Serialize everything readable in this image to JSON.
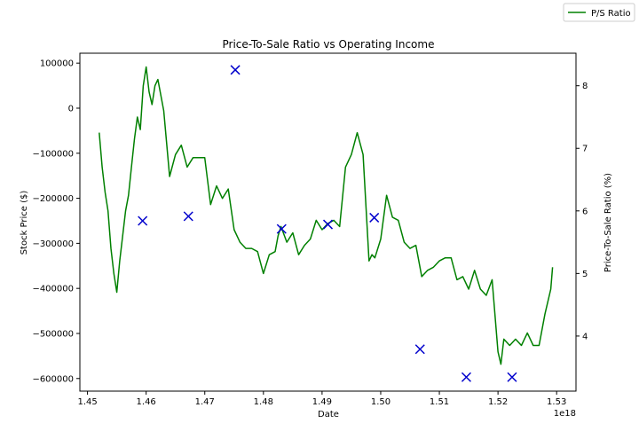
{
  "chart_data": {
    "type": "line",
    "title": "Price-To-Sale Ratio vs Operating Income",
    "xlabel": "Date",
    "x_offset_label": "1e18",
    "ylabel_left": "Stock Price ($)",
    "ylabel_right": "Price-To-Sale Ratio (%)",
    "xlim": [
      1.4487,
      1.5333
    ],
    "ylim_left": [
      -628000,
      122000
    ],
    "ylim_right": [
      3.12,
      8.52
    ],
    "x_ticks": [
      1.45,
      1.46,
      1.47,
      1.48,
      1.49,
      1.5,
      1.51,
      1.52,
      1.53
    ],
    "x_tick_labels": [
      "1.45",
      "1.46",
      "1.47",
      "1.48",
      "1.49",
      "1.50",
      "1.51",
      "1.52",
      "1.53"
    ],
    "y_left_ticks": [
      100000,
      0,
      -100000,
      -200000,
      -300000,
      -400000,
      -500000,
      -600000
    ],
    "y_left_tick_labels": [
      "100000",
      "0",
      "−100000",
      "−200000",
      "−300000",
      "−400000",
      "−500000",
      "−600000"
    ],
    "y_right_ticks": [
      4,
      5,
      6,
      7,
      8
    ],
    "y_right_tick_labels": [
      "4",
      "5",
      "6",
      "7",
      "8"
    ],
    "legend": {
      "position": "top-right",
      "entries": [
        "P/S Ratio"
      ]
    },
    "grid": false,
    "colors": {
      "line": "#008000",
      "markers": "#0000cc"
    },
    "series": [
      {
        "name": "P/S Ratio",
        "type": "line",
        "axis": "right",
        "color": "#008000",
        "x": [
          1.452,
          1.4525,
          1.453,
          1.4535,
          1.454,
          1.4545,
          1.455,
          1.4555,
          1.456,
          1.4565,
          1.457,
          1.4575,
          1.458,
          1.4585,
          1.459,
          1.4595,
          1.46,
          1.4605,
          1.461,
          1.4615,
          1.462,
          1.463,
          1.464,
          1.465,
          1.466,
          1.467,
          1.468,
          1.469,
          1.47,
          1.471,
          1.472,
          1.473,
          1.474,
          1.475,
          1.476,
          1.477,
          1.478,
          1.479,
          1.48,
          1.481,
          1.482,
          1.4825,
          1.483,
          1.484,
          1.485,
          1.486,
          1.487,
          1.488,
          1.489,
          1.49,
          1.491,
          1.492,
          1.493,
          1.494,
          1.495,
          1.496,
          1.497,
          1.498,
          1.4985,
          1.499,
          1.5,
          1.501,
          1.502,
          1.503,
          1.504,
          1.505,
          1.506,
          1.507,
          1.508,
          1.509,
          1.51,
          1.511,
          1.512,
          1.513,
          1.514,
          1.515,
          1.516,
          1.517,
          1.518,
          1.519,
          1.52,
          1.5205,
          1.521,
          1.522,
          1.523,
          1.524,
          1.525,
          1.526,
          1.527,
          1.528,
          1.529,
          1.5293
        ],
        "values": [
          7.25,
          6.7,
          6.3,
          6.0,
          5.4,
          5.0,
          4.7,
          5.2,
          5.6,
          6.0,
          6.25,
          6.7,
          7.15,
          7.5,
          7.3,
          8.0,
          8.3,
          7.9,
          7.7,
          8.0,
          8.1,
          7.6,
          6.55,
          6.9,
          7.05,
          6.7,
          6.85,
          6.85,
          6.85,
          6.1,
          6.4,
          6.2,
          6.35,
          5.7,
          5.5,
          5.4,
          5.4,
          5.35,
          5.0,
          5.3,
          5.35,
          5.6,
          5.75,
          5.5,
          5.65,
          5.3,
          5.45,
          5.55,
          5.85,
          5.7,
          5.8,
          5.85,
          5.75,
          6.7,
          6.9,
          7.25,
          6.9,
          5.2,
          5.3,
          5.25,
          5.55,
          6.25,
          5.9,
          5.85,
          5.5,
          5.4,
          5.45,
          4.95,
          5.05,
          5.1,
          5.2,
          5.25,
          5.25,
          4.9,
          4.95,
          4.75,
          5.05,
          4.75,
          4.65,
          4.9,
          3.75,
          3.55,
          3.95,
          3.85,
          3.95,
          3.85,
          4.05,
          3.85,
          3.85,
          4.35,
          4.75,
          5.1
        ]
      },
      {
        "name": "",
        "type": "scatter",
        "marker": "x",
        "axis": "left",
        "color": "#0000cc",
        "x": [
          1.4594,
          1.4672,
          1.4752,
          1.4831,
          1.491,
          1.4989,
          1.5067,
          1.5146,
          1.5224
        ],
        "values": [
          -250000,
          -240000,
          85000,
          -268000,
          -258000,
          -243000,
          -535000,
          -597000,
          -597000
        ]
      }
    ]
  }
}
